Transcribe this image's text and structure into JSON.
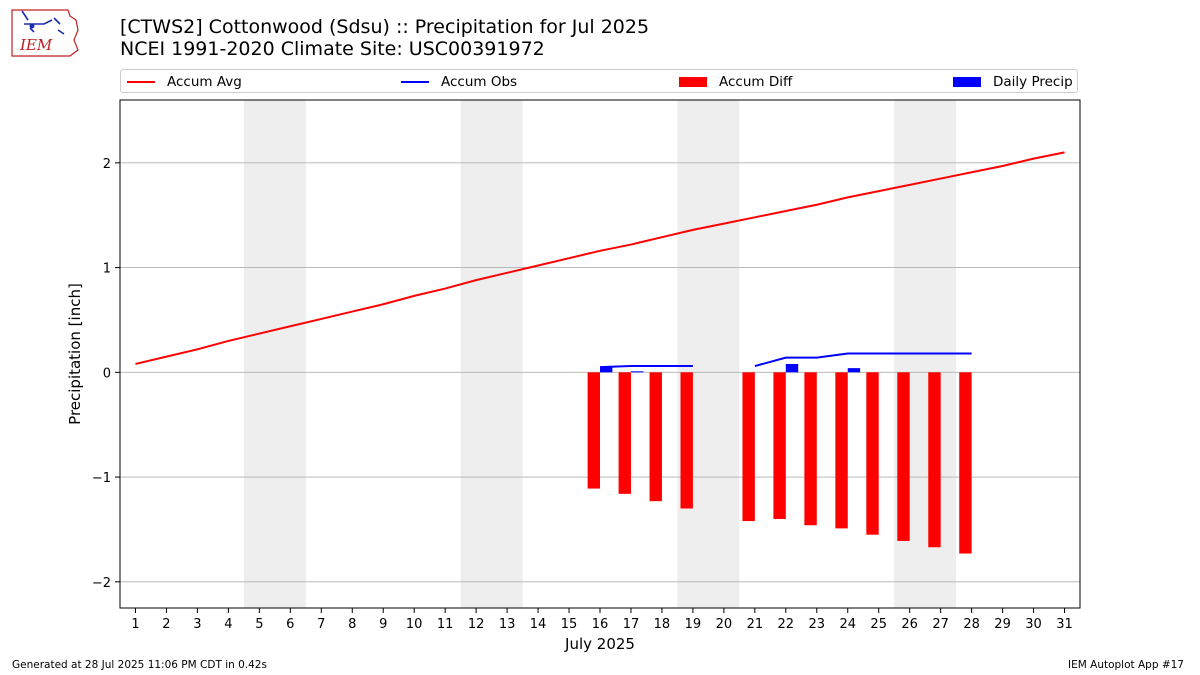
{
  "header": {
    "title_line1": "[CTWS2] Cottonwood (Sdsu) :: Precipitation for Jul 2025",
    "title_line2": "NCEI 1991-2020 Climate Site: USC00391972"
  },
  "logo": {
    "text": "IEM",
    "color": "#c02020",
    "accent": "#1a2db0"
  },
  "legend": [
    {
      "label": "Accum Avg",
      "kind": "line",
      "color": "#ff0000"
    },
    {
      "label": "Accum Obs",
      "kind": "line",
      "color": "#0000ff"
    },
    {
      "label": "Accum Diff",
      "kind": "patch",
      "color": "#ff0000"
    },
    {
      "label": "Daily Precip",
      "kind": "patch",
      "color": "#0000ff"
    }
  ],
  "footer": {
    "left": "Generated at 28 Jul 2025 11:06 PM CDT in 0.42s",
    "right": "IEM Autoplot App #17"
  },
  "chart_data": {
    "type": "bar",
    "xlabel": "July 2025",
    "ylabel": "Precipitation [inch]",
    "xlim": [
      0.5,
      31.5
    ],
    "ylim": [
      -2.25,
      2.6
    ],
    "xticks": [
      1,
      2,
      3,
      4,
      5,
      6,
      7,
      8,
      9,
      10,
      11,
      12,
      13,
      14,
      15,
      16,
      17,
      18,
      19,
      20,
      21,
      22,
      23,
      24,
      25,
      26,
      27,
      28,
      29,
      30,
      31
    ],
    "yticks": [
      -2,
      -1,
      0,
      1,
      2
    ],
    "ytick_labels": [
      "−2",
      "−1",
      "0",
      "1",
      "2"
    ],
    "grid": "horizontal",
    "legend_position": "top",
    "weekend_shading": [
      [
        4.5,
        6.5
      ],
      [
        11.5,
        13.5
      ],
      [
        18.5,
        20.5
      ],
      [
        25.5,
        27.5
      ]
    ],
    "series": [
      {
        "name": "Accum Avg",
        "type": "line",
        "color": "#ff0000",
        "x": [
          1,
          2,
          3,
          4,
          5,
          6,
          7,
          8,
          9,
          10,
          11,
          12,
          13,
          14,
          15,
          16,
          17,
          18,
          19,
          20,
          21,
          22,
          23,
          24,
          25,
          26,
          27,
          28,
          29,
          30,
          31
        ],
        "y": [
          0.08,
          0.15,
          0.22,
          0.3,
          0.37,
          0.44,
          0.51,
          0.58,
          0.65,
          0.73,
          0.8,
          0.88,
          0.95,
          1.02,
          1.09,
          1.16,
          1.22,
          1.29,
          1.36,
          1.42,
          1.48,
          1.54,
          1.6,
          1.67,
          1.73,
          1.79,
          1.85,
          1.91,
          1.97,
          2.04,
          2.1
        ]
      },
      {
        "name": "Accum Obs",
        "type": "line",
        "color": "#0000ff",
        "segments": [
          {
            "x": [
              16,
              17,
              18,
              19
            ],
            "y": [
              0.05,
              0.06,
              0.06,
              0.06
            ]
          },
          {
            "x": [
              21,
              22,
              23,
              24,
              25,
              26,
              27,
              28
            ],
            "y": [
              0.06,
              0.14,
              0.14,
              0.18,
              0.18,
              0.18,
              0.18,
              0.18
            ]
          }
        ]
      },
      {
        "name": "Accum Diff",
        "type": "bar",
        "color": "#ff0000",
        "x": [
          16,
          17,
          18,
          19,
          21,
          22,
          23,
          24,
          25,
          26,
          27,
          28
        ],
        "y": [
          -1.11,
          -1.16,
          -1.23,
          -1.3,
          -1.42,
          -1.4,
          -1.46,
          -1.49,
          -1.55,
          -1.61,
          -1.67,
          -1.73
        ]
      },
      {
        "name": "Daily Precip",
        "type": "bar",
        "color": "#0000ff",
        "x": [
          16,
          17,
          22,
          24
        ],
        "y": [
          0.05,
          0.01,
          0.08,
          0.04
        ]
      }
    ]
  }
}
